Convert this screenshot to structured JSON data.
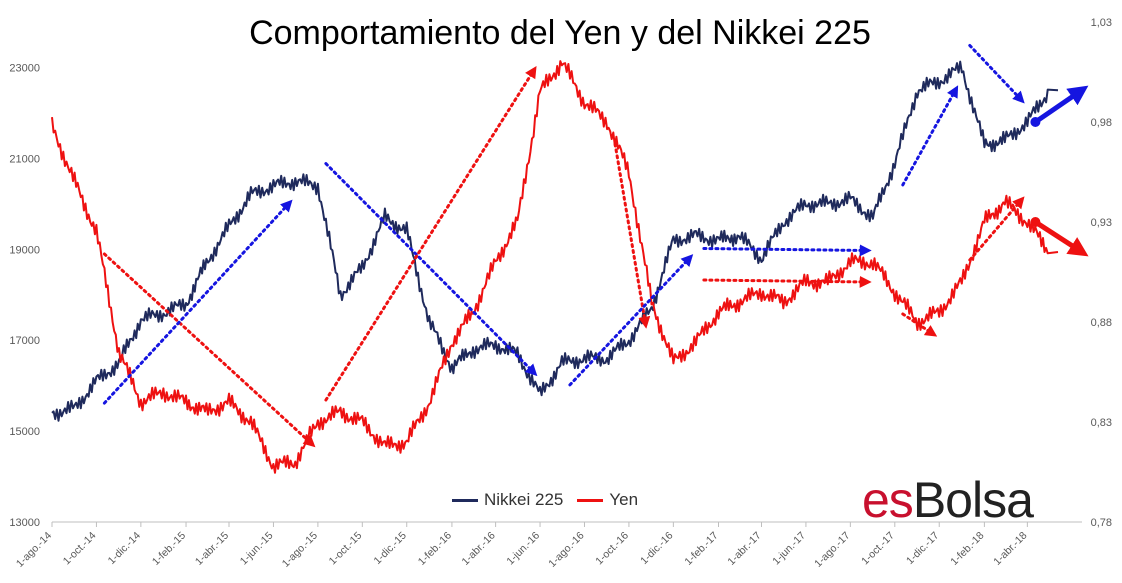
{
  "chart_data": {
    "type": "line",
    "title": "Comportamiento del Yen y del Nikkei 225",
    "x_tick_labels": [
      "1-ago.-14",
      "1-oct.-14",
      "1-dic.-14",
      "1-feb.-15",
      "1-abr.-15",
      "1-jun.-15",
      "1-ago.-15",
      "1-oct.-15",
      "1-dic.-15",
      "1-feb.-16",
      "1-abr.-16",
      "1-jun.-16",
      "1-ago.-16",
      "1-oct.-16",
      "1-dic.-16",
      "1-feb.-17",
      "1-abr.-17",
      "1-jun.-17",
      "1-ago.-17",
      "1-oct.-17",
      "1-dic.-17",
      "1-feb.-18",
      "1-abr.-18"
    ],
    "y_left": {
      "ticks": [
        "13000",
        "15000",
        "17000",
        "19000",
        "21000",
        "23000"
      ],
      "range": [
        13000,
        24000
      ]
    },
    "y_right": {
      "ticks": [
        "0,78",
        "0,83",
        "0,88",
        "0,93",
        "0,98",
        "1,03"
      ],
      "range": [
        0.78,
        1.03
      ]
    },
    "legend_position": "bottom",
    "grid": false,
    "series": [
      {
        "name": "Nikkei 225",
        "axis": "left",
        "color": "#1f2a5c",
        "months": [
          "2014-08",
          "2014-09",
          "2014-10",
          "2014-11",
          "2014-12",
          "2015-01",
          "2015-02",
          "2015-03",
          "2015-04",
          "2015-05",
          "2015-06",
          "2015-07",
          "2015-08",
          "2015-09",
          "2015-10",
          "2015-11",
          "2015-12",
          "2016-01",
          "2016-02",
          "2016-03",
          "2016-04",
          "2016-05",
          "2016-06",
          "2016-07",
          "2016-08",
          "2016-09",
          "2016-10",
          "2016-11",
          "2016-12",
          "2017-01",
          "2017-02",
          "2017-03",
          "2017-04",
          "2017-05",
          "2017-06",
          "2017-07",
          "2017-08",
          "2017-09",
          "2017-10",
          "2017-11",
          "2017-12",
          "2018-01",
          "2018-02",
          "2018-03",
          "2018-04",
          "2018-05"
        ],
        "values": [
          15400,
          15500,
          16100,
          16500,
          17450,
          17600,
          17800,
          18700,
          19500,
          20200,
          20400,
          20500,
          20400,
          18000,
          18600,
          19700,
          19400,
          17400,
          16400,
          16800,
          16900,
          16700,
          15800,
          16500,
          16600,
          16600,
          17000,
          17700,
          19200,
          19300,
          19200,
          19300,
          18800,
          19600,
          20000,
          20000,
          20100,
          19700,
          20900,
          22500,
          22700,
          23000,
          21300,
          21400,
          21800,
          22500
        ]
      },
      {
        "name": "Yen",
        "axis": "right",
        "color": "#ee1111",
        "months": [
          "2014-08",
          "2014-09",
          "2014-10",
          "2014-11",
          "2014-12",
          "2015-01",
          "2015-02",
          "2015-03",
          "2015-04",
          "2015-05",
          "2015-06",
          "2015-07",
          "2015-08",
          "2015-09",
          "2015-10",
          "2015-11",
          "2015-12",
          "2016-01",
          "2016-02",
          "2016-03",
          "2016-04",
          "2016-05",
          "2016-06",
          "2016-07",
          "2016-08",
          "2016-09",
          "2016-10",
          "2016-11",
          "2016-12",
          "2017-01",
          "2017-02",
          "2017-03",
          "2017-04",
          "2017-05",
          "2017-06",
          "2017-07",
          "2017-08",
          "2017-09",
          "2017-10",
          "2017-11",
          "2017-12",
          "2018-01",
          "2018-02",
          "2018-03",
          "2018-04",
          "2018-05"
        ],
        "values": [
          0.978,
          0.95,
          0.925,
          0.865,
          0.84,
          0.845,
          0.84,
          0.835,
          0.84,
          0.83,
          0.808,
          0.81,
          0.83,
          0.835,
          0.83,
          0.818,
          0.82,
          0.84,
          0.87,
          0.885,
          0.91,
          0.93,
          0.995,
          1.01,
          0.99,
          0.98,
          0.955,
          0.89,
          0.86,
          0.87,
          0.885,
          0.89,
          0.895,
          0.89,
          0.9,
          0.9,
          0.91,
          0.91,
          0.895,
          0.88,
          0.885,
          0.9,
          0.93,
          0.94,
          0.93,
          0.915
        ]
      }
    ],
    "annotation_arrows": [
      {
        "color": "#ee1111",
        "style": "dotted",
        "direction": "down",
        "from_date": "2014-10",
        "to_date": "2015-08"
      },
      {
        "color": "#1f2a5c",
        "style": "dotted",
        "direction": "up",
        "from_date": "2014-10",
        "to_date": "2015-07"
      },
      {
        "color": "#1f2a5c",
        "style": "dotted",
        "direction": "down",
        "from_date": "2015-08",
        "to_date": "2016-06"
      },
      {
        "color": "#ee1111",
        "style": "dotted",
        "direction": "up",
        "from_date": "2015-08",
        "to_date": "2016-06"
      },
      {
        "color": "#ee1111",
        "style": "dotted",
        "direction": "down",
        "from_date": "2016-09",
        "to_date": "2016-11"
      },
      {
        "color": "#1f2a5c",
        "style": "dotted",
        "direction": "up",
        "from_date": "2016-07",
        "to_date": "2017-01"
      },
      {
        "color": "#1f2a5c",
        "style": "dotted",
        "direction": "flat",
        "from_date": "2017-01",
        "to_date": "2017-09"
      },
      {
        "color": "#ee1111",
        "style": "dotted",
        "direction": "flat",
        "from_date": "2017-01",
        "to_date": "2017-09"
      },
      {
        "color": "#1f2a5c",
        "style": "dotted",
        "direction": "up",
        "from_date": "2017-10",
        "to_date": "2018-01"
      },
      {
        "color": "#ee1111",
        "style": "dotted",
        "direction": "down",
        "from_date": "2017-10",
        "to_date": "2017-12"
      },
      {
        "color": "#ee1111",
        "style": "dotted",
        "direction": "up",
        "from_date": "2018-01",
        "to_date": "2018-04"
      },
      {
        "color": "#1f2a5c",
        "style": "dotted",
        "direction": "down",
        "from_date": "2018-01",
        "to_date": "2018-04"
      },
      {
        "color": "#1f2a5c",
        "style": "solid",
        "direction": "up",
        "from_date": "2018-04",
        "to_date": "2018-06"
      },
      {
        "color": "#ee1111",
        "style": "solid",
        "direction": "down",
        "from_date": "2018-04",
        "to_date": "2018-06"
      }
    ]
  },
  "brand": {
    "part1": "es",
    "part2": "Bolsa"
  }
}
